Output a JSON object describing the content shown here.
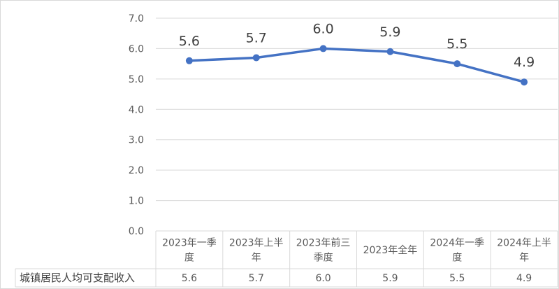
{
  "chart_data": {
    "type": "line",
    "categories": [
      [
        "2023年一季",
        "度"
      ],
      [
        "2023年上半",
        "年"
      ],
      [
        "2023年前三",
        "季度"
      ],
      [
        "2023年全年"
      ],
      [
        "2024年一季",
        "度"
      ],
      [
        "2024年上半",
        "年"
      ]
    ],
    "series": [
      {
        "name": "城镇居民人均可支配收入",
        "values": [
          5.6,
          5.7,
          6.0,
          5.9,
          5.5,
          4.9
        ]
      }
    ],
    "value_labels": [
      "5.6",
      "5.7",
      "6.0",
      "5.9",
      "5.5",
      "4.9"
    ],
    "y_ticks": [
      "0.0",
      "1.0",
      "2.0",
      "3.0",
      "4.0",
      "5.0",
      "6.0",
      "7.0"
    ],
    "ylim": [
      0,
      7
    ],
    "grid": true,
    "legend": "data table",
    "colors": {
      "line": "#4472c4",
      "grid": "#d9d9d9",
      "text": "#595959"
    }
  }
}
